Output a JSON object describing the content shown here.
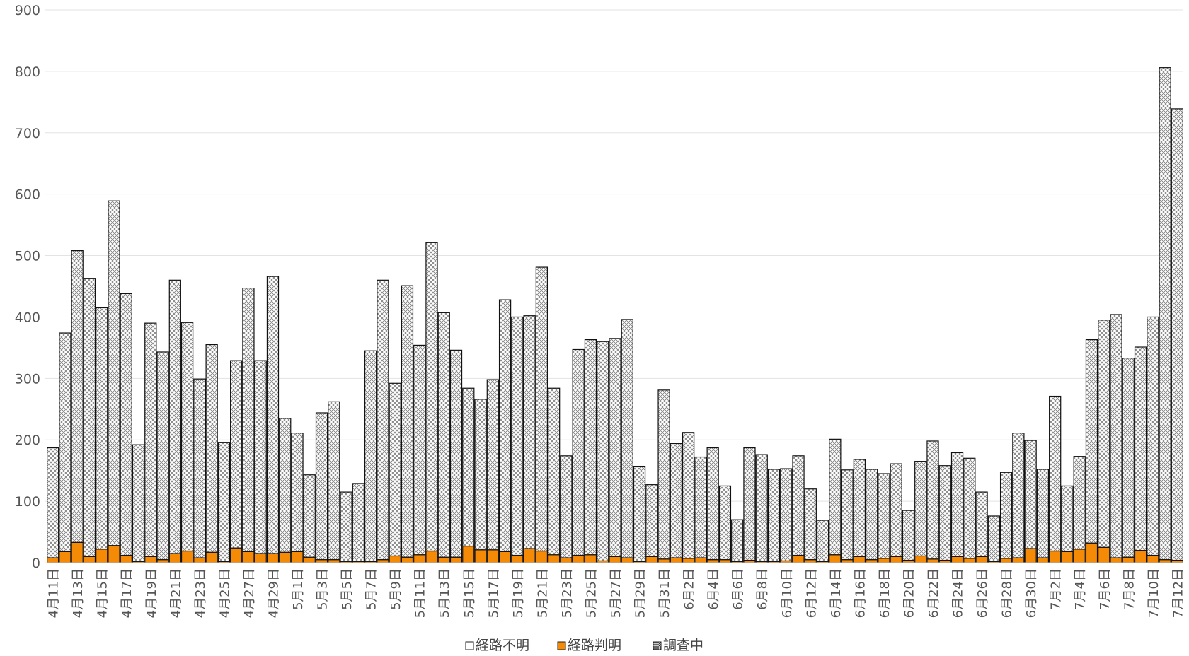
{
  "chart_data": {
    "type": "bar",
    "stacked": true,
    "grid": true,
    "legend_position": "bottom",
    "ylim": [
      0,
      900
    ],
    "yticks": [
      0,
      100,
      200,
      300,
      400,
      500,
      600,
      700,
      800,
      900
    ],
    "categories": [
      "4月11日",
      "4月12日",
      "4月13日",
      "4月14日",
      "4月15日",
      "4月16日",
      "4月17日",
      "4月18日",
      "4月19日",
      "4月20日",
      "4月21日",
      "4月22日",
      "4月23日",
      "4月24日",
      "4月25日",
      "4月26日",
      "4月27日",
      "4月28日",
      "4月29日",
      "4月30日",
      "5月1日",
      "5月2日",
      "5月3日",
      "5月4日",
      "5月5日",
      "5月6日",
      "5月7日",
      "5月8日",
      "5月9日",
      "5月10日",
      "5月11日",
      "5月12日",
      "5月13日",
      "5月14日",
      "5月15日",
      "5月16日",
      "5月17日",
      "5月18日",
      "5月19日",
      "5月20日",
      "5月21日",
      "5月22日",
      "5月23日",
      "5月24日",
      "5月25日",
      "5月26日",
      "5月27日",
      "5月28日",
      "5月29日",
      "5月30日",
      "5月31日",
      "6月1日",
      "6月2日",
      "6月3日",
      "6月4日",
      "6月5日",
      "6月6日",
      "6月7日",
      "6月8日",
      "6月9日",
      "6月10日",
      "6月11日",
      "6月12日",
      "6月13日",
      "6月14日",
      "6月15日",
      "6月16日",
      "6月17日",
      "6月18日",
      "6月19日",
      "6月20日",
      "6月21日",
      "6月22日",
      "6月23日",
      "6月24日",
      "6月25日",
      "6月26日",
      "6月27日",
      "6月28日",
      "6月29日",
      "6月30日",
      "7月1日",
      "7月2日",
      "7月3日",
      "7月4日",
      "7月5日",
      "7月6日",
      "7月7日",
      "7月8日",
      "7月9日",
      "7月10日",
      "7月11日",
      "7月12日"
    ],
    "x_tick_labels": [
      "4月11日",
      "4月13日",
      "4月15日",
      "4月17日",
      "4月19日",
      "4月21日",
      "4月23日",
      "4月25日",
      "4月27日",
      "4月29日",
      "5月1日",
      "5月3日",
      "5月5日",
      "5月7日",
      "5月9日",
      "5月11日",
      "5月13日",
      "5月15日",
      "5月17日",
      "5月19日",
      "5月21日",
      "5月23日",
      "5月25日",
      "5月27日",
      "5月29日",
      "5月31日",
      "6月2日",
      "6月4日",
      "6月6日",
      "6月8日",
      "6月10日",
      "6月12日",
      "6月14日",
      "6月16日",
      "6月18日",
      "6月20日",
      "6月22日",
      "6月24日",
      "6月26日",
      "6月28日",
      "6月30日",
      "7月2日",
      "7月4日",
      "7月6日",
      "7月8日",
      "7月10日",
      "7月12日"
    ],
    "series": [
      {
        "name": "経路判明",
        "color": "#F58A07",
        "pattern": "solid",
        "values": [
          8,
          18,
          33,
          10,
          22,
          28,
          12,
          2,
          10,
          5,
          15,
          19,
          8,
          17,
          2,
          24,
          18,
          15,
          15,
          17,
          18,
          9,
          5,
          5,
          2,
          2,
          2,
          5,
          11,
          9,
          13,
          19,
          9,
          9,
          27,
          21,
          21,
          18,
          12,
          23,
          19,
          13,
          8,
          12,
          13,
          3,
          10,
          8,
          2,
          10,
          6,
          8,
          7,
          8,
          5,
          5,
          2,
          4,
          2,
          2,
          3,
          12,
          5,
          2,
          13,
          5,
          10,
          5,
          7,
          10,
          4,
          11,
          6,
          4,
          10,
          7,
          10,
          2,
          7,
          8,
          23,
          8,
          19,
          18,
          22,
          32,
          25,
          8,
          9,
          20,
          12,
          5,
          4
        ]
      },
      {
        "name": "調査中",
        "color": "#444444",
        "pattern": "crosshatch",
        "values": [
          179,
          356,
          475,
          453,
          393,
          561,
          426,
          190,
          380,
          338,
          445,
          372,
          291,
          338,
          194,
          305,
          429,
          314,
          451,
          218,
          193,
          134,
          239,
          257,
          113,
          127,
          343,
          455,
          281,
          442,
          341,
          502,
          398,
          337,
          257,
          245,
          277,
          410,
          388,
          379,
          462,
          271,
          166,
          335,
          350,
          357,
          355,
          388,
          155,
          117,
          275,
          186,
          205,
          164,
          182,
          120,
          68,
          183,
          174,
          150,
          150,
          162,
          115,
          67,
          188,
          146,
          158,
          147,
          138,
          151,
          81,
          154,
          192,
          154,
          169,
          163,
          105,
          74,
          140,
          203,
          176,
          144,
          252,
          107,
          151,
          331,
          370,
          396,
          324,
          331,
          388,
          801,
          735
        ]
      },
      {
        "name": "経路不明",
        "color": "#ffffff",
        "pattern": "empty",
        "values": [
          0,
          0,
          0,
          0,
          0,
          0,
          0,
          0,
          0,
          0,
          0,
          0,
          0,
          0,
          0,
          0,
          0,
          0,
          0,
          0,
          0,
          0,
          0,
          0,
          0,
          0,
          0,
          0,
          0,
          0,
          0,
          0,
          0,
          0,
          0,
          0,
          0,
          0,
          0,
          0,
          0,
          0,
          0,
          0,
          0,
          0,
          0,
          0,
          0,
          0,
          0,
          0,
          0,
          0,
          0,
          0,
          0,
          0,
          0,
          0,
          0,
          0,
          0,
          0,
          0,
          0,
          0,
          0,
          0,
          0,
          0,
          0,
          0,
          0,
          0,
          0,
          0,
          0,
          0,
          0,
          0,
          0,
          0,
          0,
          0,
          0,
          0,
          0,
          0,
          0,
          0,
          0,
          0
        ]
      }
    ],
    "legend": [
      {
        "label": "経路不明",
        "pattern": "empty"
      },
      {
        "label": "経路判明",
        "pattern": "solid"
      },
      {
        "label": "調査中",
        "pattern": "crosshatch"
      }
    ]
  }
}
